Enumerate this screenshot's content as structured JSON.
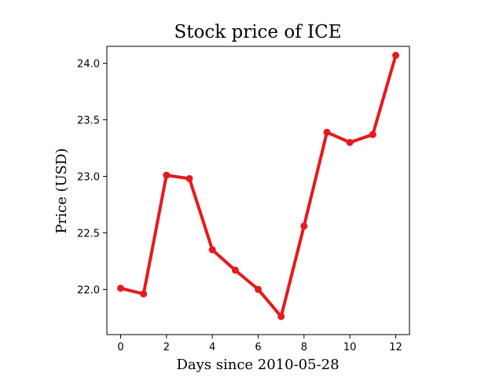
{
  "chart_data": {
    "type": "line",
    "title": "Stock price of ICE",
    "xlabel": "Days since 2010-05-28",
    "ylabel": "Price (USD)",
    "x": [
      0,
      1,
      2,
      3,
      4,
      5,
      6,
      7,
      8,
      9,
      10,
      11,
      12
    ],
    "series": [
      {
        "values": [
          22.01,
          21.96,
          23.01,
          22.98,
          22.35,
          22.17,
          22.0,
          21.76,
          22.56,
          23.39,
          23.3,
          23.37,
          24.07
        ]
      }
    ],
    "xticks": [
      0,
      2,
      4,
      6,
      8,
      10,
      12
    ],
    "xtick_labels": [
      "0",
      "2",
      "4",
      "6",
      "8",
      "10",
      "12"
    ],
    "yticks": [
      22.0,
      22.5,
      23.0,
      23.5,
      24.0
    ],
    "ytick_labels": [
      "22.0",
      "22.5",
      "23.0",
      "23.5",
      "24.0"
    ],
    "xlim": [
      -0.6,
      12.6
    ],
    "ylim": [
      21.6,
      24.15
    ],
    "grid": false,
    "line_color": "#e41a1c",
    "marker": "circle"
  }
}
